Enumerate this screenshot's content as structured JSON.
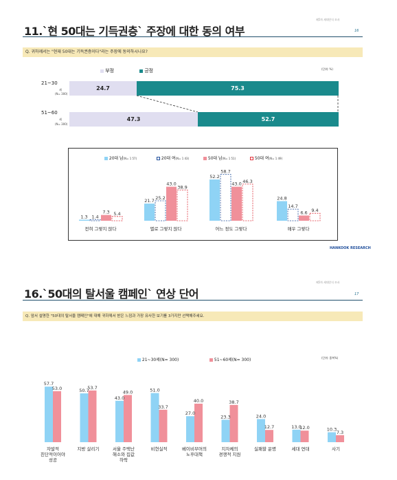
{
  "colors": {
    "teal": "#1a8a8c",
    "lavender": "#e0def0",
    "sky": "#8fd3f5",
    "pink": "#f0909a",
    "navy": "#1f4e6b",
    "question_bg": "#f7e9b8"
  },
  "page1": {
    "header_text": "제5차 세대인식 조사",
    "page_num": "16",
    "title": "11.`현 50대는 기득권층` 주장에 대한 동의 여부",
    "question": "Q. 귀하께서는 \"현재 50대는 기득권층이다\"라는 주장에 동의하시나요?",
    "legend_neg": "부정",
    "legend_pos": "긍정",
    "unit": "(단위: %)",
    "rows": [
      {
        "label": "21~30",
        "sub": "세",
        "n": "(N= 300)",
        "neg": "24.7",
        "pos": "75.3"
      },
      {
        "label": "51~60",
        "sub": "세",
        "n": "(N= 300)",
        "neg": "47.3",
        "pos": "52.7"
      }
    ],
    "legend": [
      {
        "name": "20대 남",
        "n": "(N= 1 57)"
      },
      {
        "name": "20대 여",
        "n": "(N= 1 43)"
      },
      {
        "name": "50대 남",
        "n": "(N= 1 51)"
      },
      {
        "name": "50대 여",
        "n": "(N= 1 49)"
      }
    ],
    "groups": [
      {
        "label": "전혀 그렇지 않다",
        "values": [
          "1.3",
          "1.4",
          "7.3",
          "5.4"
        ]
      },
      {
        "label": "별로 그렇지 않다",
        "values": [
          "21.7",
          "25.2",
          "43.0",
          "38.9"
        ]
      },
      {
        "label": "어느 정도 그렇다",
        "values": [
          "52.2",
          "58.7",
          "43.0",
          "46.3"
        ]
      },
      {
        "label": "매우 그렇다",
        "values": [
          "24.8",
          "14.7",
          "6.6",
          "9.4"
        ]
      }
    ],
    "logo": "HANKOOK RESEARCH"
  },
  "page2": {
    "header_text": "제5차 세대인식 조사",
    "page_num": "17",
    "title": "16.`50대의 탈서울 캠페인` 연상 단어",
    "question": "Q. 앞서 설명한 \"50대의 탈서울 캠페인\"에 대해 귀하께서 받은 느낌과 가장 유사한 보기를 3가지만 선택해주세요.",
    "legend_a": "21~30세(N= 300)",
    "legend_b": "51~60세(N= 300)",
    "unit": "(단위: 중복%)",
    "bars": [
      {
        "label": "자발적 친단적이어야 성공",
        "a": "57.7",
        "b": "53.0"
      },
      {
        "label": "지방 살리기",
        "a": "50.7",
        "b": "53.7"
      },
      {
        "label": "서울 주택난 해소와 집값 하락",
        "a": "43.0",
        "b": "49.0"
      },
      {
        "label": "비현실적",
        "a": "51.0",
        "b": "33.7"
      },
      {
        "label": "베이비부머의 노후대책",
        "a": "27.0",
        "b": "40.0"
      },
      {
        "label": "지자체의 경쟁적 지원",
        "a": "23.3",
        "b": "38.7"
      },
      {
        "label": "실패할 운명",
        "a": "24.0",
        "b": "12.7"
      },
      {
        "label": "세대 연대",
        "a": "13.0",
        "b": "12.0"
      },
      {
        "label": "사기",
        "a": "10.3",
        "b": "7.3"
      }
    ]
  }
}
